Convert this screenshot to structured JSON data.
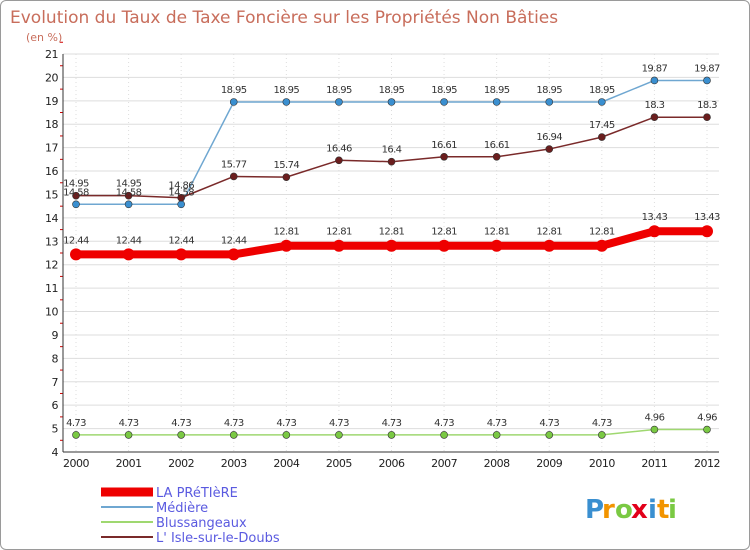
{
  "chart_data": {
    "type": "line",
    "title": "Evolution du Taux de Taxe Foncière sur les Propriétés Non Bâties",
    "subtitle": "(en %)",
    "xlabel": "",
    "ylabel": "",
    "categories": [
      "2000",
      "2001",
      "2002",
      "2003",
      "2004",
      "2005",
      "2006",
      "2007",
      "2008",
      "2009",
      "2010",
      "2011",
      "2012"
    ],
    "ylim": [
      4,
      21
    ],
    "yticks": [
      4,
      5,
      6,
      7,
      8,
      9,
      10,
      11,
      12,
      13,
      14,
      15,
      16,
      17,
      18,
      19,
      20,
      21
    ],
    "grid": true,
    "legend_position": "bottom-left",
    "series": [
      {
        "name": "LA PRéTIèRE",
        "color": "#ee0000",
        "point_color": "#ee0000",
        "values": [
          12.44,
          12.44,
          12.44,
          12.44,
          12.81,
          12.81,
          12.81,
          12.81,
          12.81,
          12.81,
          12.81,
          13.43,
          13.43
        ],
        "labels": [
          "12.44",
          "12.44",
          "12.44",
          "12.44",
          "12.81",
          "12.81",
          "12.81",
          "12.81",
          "12.81",
          "12.81",
          "12.81",
          "13.43",
          "13.43"
        ]
      },
      {
        "name": "Médière",
        "color": "#6fa7d1",
        "point_color": "#3a8fd0",
        "values": [
          14.58,
          14.58,
          14.58,
          18.95,
          18.95,
          18.95,
          18.95,
          18.95,
          18.95,
          18.95,
          18.95,
          19.87,
          19.87
        ],
        "labels": [
          "14.58",
          "14.58",
          "14.58",
          "18.95",
          "18.95",
          "18.95",
          "18.95",
          "18.95",
          "18.95",
          "18.95",
          "18.95",
          "19.87",
          "19.87"
        ]
      },
      {
        "name": "Blussangeaux",
        "color": "#9fd870",
        "point_color": "#7ac943",
        "values": [
          4.73,
          4.73,
          4.73,
          4.73,
          4.73,
          4.73,
          4.73,
          4.73,
          4.73,
          4.73,
          4.73,
          4.96,
          4.96
        ],
        "labels": [
          "4.73",
          "4.73",
          "4.73",
          "4.73",
          "4.73",
          "4.73",
          "4.73",
          "4.73",
          "4.73",
          "4.73",
          "4.73",
          "4.96",
          "4.96"
        ]
      },
      {
        "name": "L' Isle-sur-le-Doubs",
        "color": "#7a2a2a",
        "point_color": "#6b1e1e",
        "values": [
          14.95,
          14.95,
          14.86,
          15.77,
          15.74,
          16.46,
          16.4,
          16.61,
          16.61,
          16.94,
          17.45,
          18.3,
          18.3
        ],
        "labels": [
          "14.95",
          "14.95",
          "14.86",
          "15.77",
          "15.74",
          "16.46",
          "16.4",
          "16.61",
          "16.61",
          "16.94",
          "17.45",
          "18.3",
          "18.3"
        ]
      }
    ]
  },
  "logo": {
    "letters": [
      "P",
      "r",
      "o",
      "x",
      "i",
      "t",
      "i"
    ],
    "colors": [
      "#3a8fd0",
      "#f29400",
      "#7ac943",
      "#e2001a",
      "#3a8fd0",
      "#f29400",
      "#7ac943"
    ]
  },
  "colors": {
    "title": "#c86d5b",
    "axis_tick_red": "#d00000",
    "grid": "#dddddd"
  }
}
